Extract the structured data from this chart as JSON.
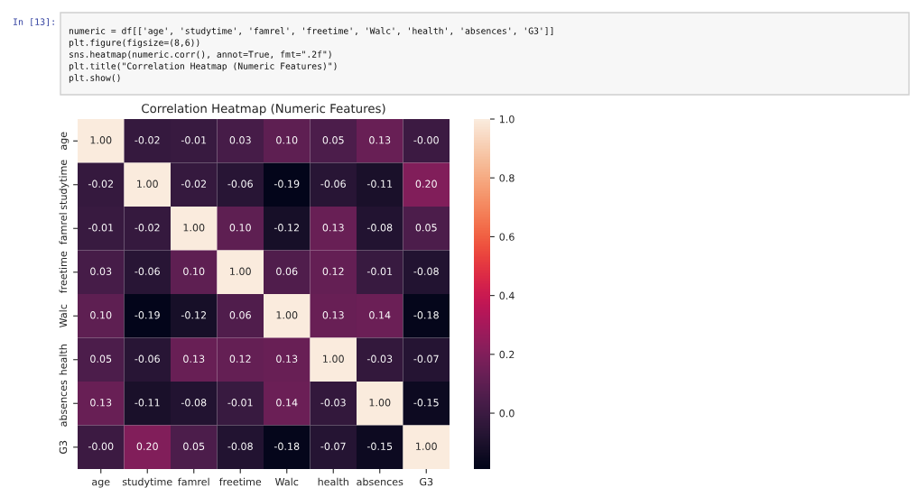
{
  "chart_data": {
    "type": "heatmap",
    "title": "Correlation Heatmap (Numeric Features)",
    "categories": [
      "age",
      "studytime",
      "famrel",
      "freetime",
      "Walc",
      "health",
      "absences",
      "G3"
    ],
    "y_categories": [
      "age",
      "studytime",
      "famrel",
      "freetime",
      "Walc",
      "health",
      "absences",
      "G3"
    ],
    "cells": [
      [
        1.0,
        -0.02,
        -0.01,
        0.03,
        0.1,
        0.05,
        0.13,
        0.0
      ],
      [
        -0.02,
        1.0,
        -0.02,
        -0.06,
        -0.19,
        -0.06,
        -0.11,
        0.2
      ],
      [
        -0.01,
        -0.02,
        1.0,
        0.1,
        -0.12,
        0.13,
        -0.08,
        0.05
      ],
      [
        0.03,
        -0.06,
        0.1,
        1.0,
        0.06,
        0.12,
        -0.01,
        -0.08
      ],
      [
        0.1,
        -0.19,
        -0.12,
        0.06,
        1.0,
        0.13,
        0.14,
        -0.18
      ],
      [
        0.05,
        -0.06,
        0.13,
        0.12,
        0.13,
        1.0,
        -0.03,
        -0.07
      ],
      [
        0.13,
        -0.11,
        -0.08,
        -0.01,
        0.14,
        -0.03,
        1.0,
        -0.15
      ],
      [
        0.0,
        0.2,
        0.05,
        -0.08,
        -0.18,
        -0.07,
        -0.15,
        1.0
      ]
    ],
    "cell_labels": [
      [
        "1.00",
        "-0.02",
        "-0.01",
        "0.03",
        "0.10",
        "0.05",
        "0.13",
        "-0.00"
      ],
      [
        "-0.02",
        "1.00",
        "-0.02",
        "-0.06",
        "-0.19",
        "-0.06",
        "-0.11",
        "0.20"
      ],
      [
        "-0.01",
        "-0.02",
        "1.00",
        "0.10",
        "-0.12",
        "0.13",
        "-0.08",
        "0.05"
      ],
      [
        "0.03",
        "-0.06",
        "0.10",
        "1.00",
        "0.06",
        "0.12",
        "-0.01",
        "-0.08"
      ],
      [
        "0.10",
        "-0.19",
        "-0.12",
        "0.06",
        "1.00",
        "0.13",
        "0.14",
        "-0.18"
      ],
      [
        "0.05",
        "-0.06",
        "0.13",
        "0.12",
        "0.13",
        "1.00",
        "-0.03",
        "-0.07"
      ],
      [
        "0.13",
        "-0.11",
        "-0.08",
        "-0.01",
        "0.14",
        "-0.03",
        "1.00",
        "-0.15"
      ],
      [
        "-0.00",
        "0.20",
        "0.05",
        "-0.08",
        "-0.18",
        "-0.07",
        "-0.15",
        "1.00"
      ]
    ],
    "clim": [
      -0.19,
      1.0
    ],
    "cticks": [
      {
        "value": 0,
        "label": "0.0"
      },
      {
        "value": 0.2,
        "label": "0.2"
      },
      {
        "value": 0.4,
        "label": "0.4"
      },
      {
        "value": 0.6,
        "label": "0.6"
      },
      {
        "value": 0.8,
        "label": "0.8"
      },
      {
        "value": 1,
        "label": "1.0"
      }
    ],
    "annotations": [
      "In [13]:",
      "numeric = df[['age', 'studytime', 'famrel', 'freetime', 'Walc', 'health', 'absences', 'G3']]",
      "plt.figure(figsize=(8,6))",
      "sns.heatmap(numeric.corr(), annot=True, fmt=\".2f\")",
      "plt.title(\"Correlation Heatmap (Numeric Features)\")",
      "plt.show()"
    ]
  }
}
